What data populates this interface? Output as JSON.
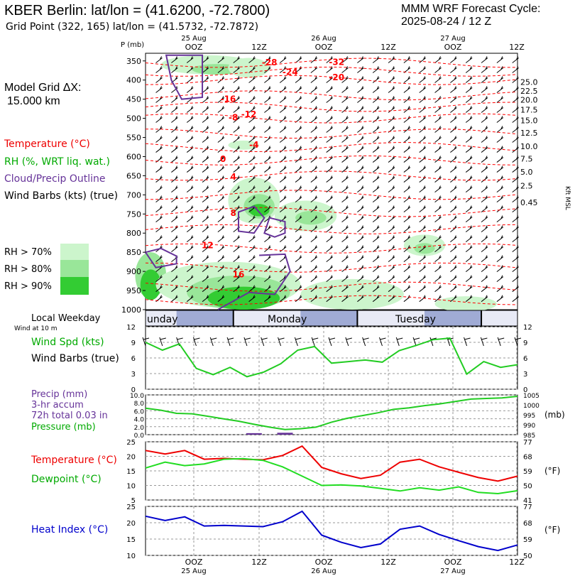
{
  "header": {
    "title": "KBER Berlin:  lat/lon = (41.6200, -72.7800)",
    "subtitle": "Grid Point (322, 165) lat/lon = (41.5732, -72.7872)",
    "cycle_line1": "MMM WRF Forecast Cycle:",
    "cycle_line2": "2025-08-24 / 12  Z",
    "grid_label_line1": "Model Grid ΔX:",
    "grid_label_line2": "15.000 km"
  },
  "colors": {
    "temperature": "#ff0000",
    "rh": "#00cc00",
    "cloud": "#663399",
    "wind": "#000000",
    "precip": "#663399",
    "pressure": "#00cc00",
    "dewpoint": "#00dd00",
    "heat_index": "#0000cc",
    "rh70": "#ccf5cc",
    "rh80": "#99e699",
    "rh90": "#33cc33"
  },
  "legend": {
    "temperature": "Temperature (°C)",
    "rh": "RH (%, WRT liq. wat.)",
    "cloud": "Cloud/Precip Outline",
    "wind": "Wind Barbs (kts) (true)",
    "rh70": "RH > 70%",
    "rh80": "RH > 80%",
    "rh90": "RH > 90%",
    "local_weekday": "Local Weekday",
    "wind_at": "Wind at 10 m",
    "wind_spd": "Wind Spd (kts)",
    "wind_barbs": "Wind Barbs (true)",
    "precip": "Precip (mm)",
    "precip_accum": "3-hr accum",
    "precip_total": "72h total 0.03 in",
    "pressure": "Pressure (mb)",
    "temp2": "Temperature (°C)",
    "dewpoint": "Dewpoint (°C)",
    "heat_index": "Heat Index (°C)"
  },
  "chart_data": {
    "time_axis": {
      "top_labels": [
        {
          "date": "25 Aug",
          "hour": "OOZ"
        },
        {
          "date": "",
          "hour": "12Z"
        },
        {
          "date": "26 Aug",
          "hour": "OOZ"
        },
        {
          "date": "",
          "hour": "12Z"
        },
        {
          "date": "27 Aug",
          "hour": "OOZ"
        },
        {
          "date": "",
          "hour": "12Z"
        }
      ],
      "bottom_labels": [
        {
          "hour": "OOZ",
          "date": "25 Aug"
        },
        {
          "hour": "12Z",
          "date": ""
        },
        {
          "hour": "OOZ",
          "date": "26 Aug"
        },
        {
          "hour": "12Z",
          "date": ""
        },
        {
          "hour": "OOZ",
          "date": "27 Aug"
        },
        {
          "hour": "12Z",
          "date": ""
        }
      ],
      "forecast_hours": [
        0,
        3,
        6,
        9,
        12,
        15,
        18,
        21,
        24,
        27,
        30,
        33,
        36,
        39,
        42,
        45,
        48,
        51,
        54,
        57,
        60,
        63,
        66,
        69,
        72
      ],
      "label_hours": [
        12,
        24,
        36,
        48,
        60,
        72
      ]
    },
    "cross_section": {
      "type": "heatmap",
      "ylabel": "P (mb)",
      "right_ylabel": "Kft MSL",
      "pressure_ticks": [
        "350",
        "400",
        "450",
        "500",
        "550",
        "600",
        "650",
        "700",
        "750",
        "800",
        "850",
        "900",
        "950",
        "1000"
      ],
      "height_ticks": [
        {
          "p": 405,
          "label": "25.0"
        },
        {
          "p": 428,
          "label": "22.5"
        },
        {
          "p": 452,
          "label": "20.0"
        },
        {
          "p": 478,
          "label": "17.5"
        },
        {
          "p": 505,
          "label": "15.0"
        },
        {
          "p": 538,
          "label": "12.5"
        },
        {
          "p": 573,
          "label": "10.0"
        },
        {
          "p": 606,
          "label": "7.5"
        },
        {
          "p": 640,
          "label": "5.0"
        },
        {
          "p": 676,
          "label": "2.5"
        },
        {
          "p": 720,
          "label": "0.45"
        }
      ],
      "ylim": [
        1000,
        330
      ],
      "temperature_labels": [
        {
          "hour": 24,
          "p": 354,
          "label": "-28"
        },
        {
          "hour": 37,
          "p": 353,
          "label": "-32"
        },
        {
          "hour": 28,
          "p": 379,
          "label": "-24"
        },
        {
          "hour": 37,
          "p": 393,
          "label": "-20"
        },
        {
          "hour": 16,
          "p": 450,
          "label": "-16"
        },
        {
          "hour": 20,
          "p": 490,
          "label": "-12"
        },
        {
          "hour": 17,
          "p": 498,
          "label": "-8"
        },
        {
          "hour": 21,
          "p": 569,
          "label": "-4"
        },
        {
          "hour": 15,
          "p": 607,
          "label": "0"
        },
        {
          "hour": 17,
          "p": 653,
          "label": "4"
        },
        {
          "hour": 17,
          "p": 748,
          "label": "8"
        },
        {
          "hour": 12,
          "p": 832,
          "label": "12"
        },
        {
          "hour": 18,
          "p": 908,
          "label": "16"
        }
      ]
    },
    "weekday_band": {
      "labels": [
        {
          "hour": 0,
          "label": "unday"
        },
        {
          "hour": 32,
          "label": "Monday"
        },
        {
          "hour": 55,
          "label": "Tuesday"
        }
      ],
      "boundaries": [
        17,
        41,
        65
      ]
    },
    "wind_speed": {
      "type": "line",
      "ylim": [
        0,
        12
      ],
      "yticks": [
        0,
        3,
        6,
        9,
        12
      ],
      "values": [
        9.0,
        7.5,
        8.7,
        4.0,
        2.8,
        4.2,
        2.4,
        3.3,
        4.9,
        7.5,
        8.2,
        5.0,
        5.3,
        5.6,
        5.2,
        7.4,
        8.4,
        9.5,
        9.8,
        2.9,
        5.3,
        4.2,
        4.7
      ]
    },
    "precip_pressure": {
      "type": "line",
      "precip_ylim": [
        0,
        10
      ],
      "precip_ticks": [
        "0.0",
        "2.0",
        "4.0",
        "6.0",
        "8.0",
        "10.0"
      ],
      "pressure_ylim": [
        985,
        1005
      ],
      "pressure_ticks": [
        "985",
        "990",
        "995",
        "1000",
        "1005"
      ],
      "right_unit": "(mb)",
      "pressure_values": [
        998.3,
        997.3,
        995.7,
        995.5,
        994.3,
        993.0,
        991.8,
        990.2,
        988.8,
        987.6,
        988.0,
        988.8,
        991.3,
        993.2,
        994.6,
        996.0,
        997.7,
        998.5,
        999.6,
        1000.5,
        1001.7,
        1002.9,
        1003.2,
        1003.5,
        1004.3
      ],
      "precip_bars": [
        {
          "hour": 21,
          "mm": 0.2
        },
        {
          "hour": 27,
          "mm": 0.3
        }
      ]
    },
    "temp_dewpoint": {
      "type": "line",
      "ylim": [
        5,
        25
      ],
      "yticks": [
        5,
        10,
        15,
        20,
        25
      ],
      "right_ticks": [
        "41",
        "50",
        "59",
        "68",
        "77"
      ],
      "right_unit": "(°F)",
      "temperature": [
        22.0,
        20.8,
        22.0,
        19.0,
        19.3,
        19.0,
        18.8,
        20.3,
        23.5,
        16.2,
        14.0,
        12.4,
        13.5,
        18.0,
        19.0,
        16.4,
        14.5,
        12.7,
        11.5,
        13.2
      ],
      "dewpoint": [
        16.0,
        18.0,
        16.8,
        17.4,
        19.0,
        19.2,
        18.6,
        16.4,
        13.2,
        10.0,
        10.2,
        9.8,
        9.0,
        8.1,
        9.2,
        8.4,
        9.5,
        7.6,
        7.2,
        8.2
      ]
    },
    "heat_index": {
      "type": "line",
      "ylim": [
        10,
        25
      ],
      "yticks": [
        10,
        15,
        20,
        25
      ],
      "right_ticks": [
        "50",
        "59",
        "68",
        "77"
      ],
      "right_unit": "(°F)",
      "values": [
        22.0,
        20.7,
        21.8,
        19.0,
        19.2,
        19.0,
        18.8,
        20.3,
        23.5,
        16.2,
        14.0,
        12.4,
        13.5,
        18.0,
        19.0,
        16.4,
        14.5,
        12.7,
        11.5,
        13.2
      ]
    }
  }
}
